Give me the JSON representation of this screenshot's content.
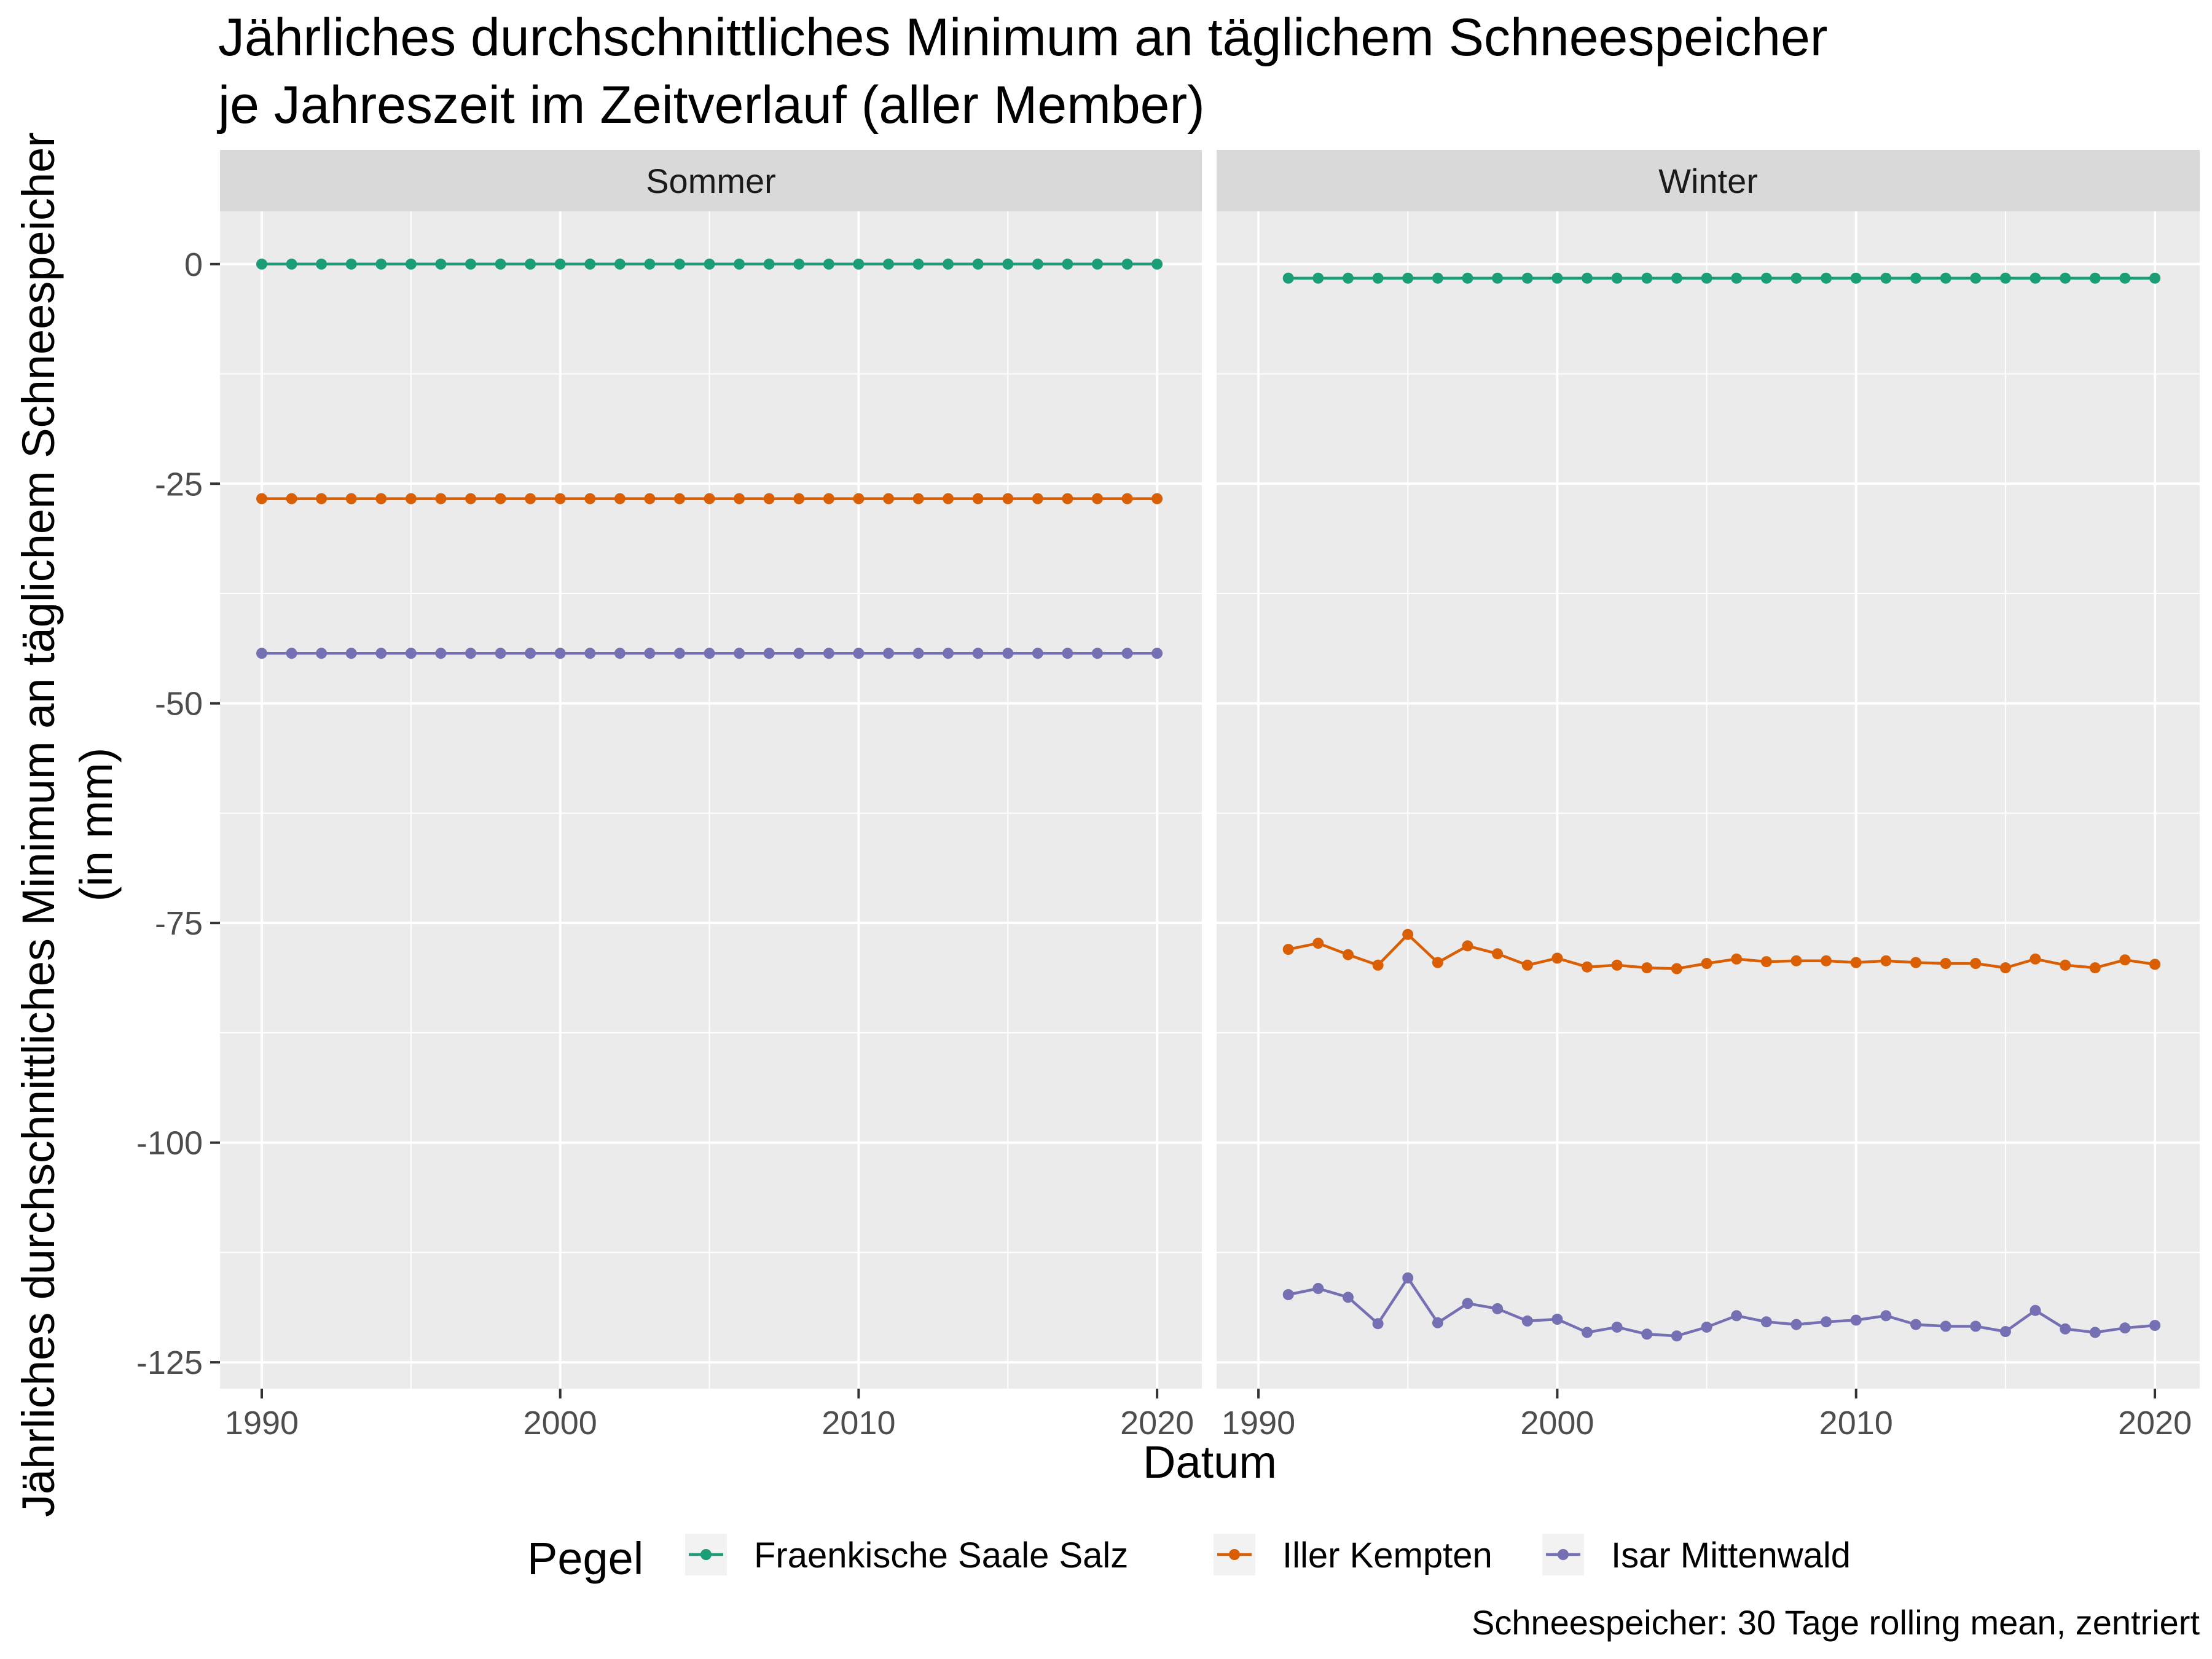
{
  "chart_data": {
    "type": "line",
    "title_lines": [
      "Jährliches durchschnittliches Minimum an täglichem Schneespeicher",
      "je Jahreszeit im Zeitverlauf (aller Member)"
    ],
    "xlabel": "Datum",
    "ylabel_lines": [
      "Jährliches durchschnittliches Minimum an täglichem Schneespeicher",
      "(in mm)"
    ],
    "caption": "Schneespeicher: 30 Tage rolling mean, zentriert",
    "legend": {
      "title": "Pegel",
      "position": "bottom"
    },
    "ylim": [
      -128,
      6
    ],
    "y_ticks": [
      0,
      -25,
      -50,
      -75,
      -100,
      -125
    ],
    "y_tick_labels": [
      "0",
      "-25",
      "-50",
      "-75",
      "-100",
      "-125"
    ],
    "x_ticks": [
      1990,
      2000,
      2010,
      2020
    ],
    "x_tick_labels": [
      "1990",
      "2000",
      "2010",
      "2020"
    ],
    "grid": true,
    "colors": {
      "Fraenkische Saale Salz": "#1b9e77",
      "Iller Kempten": "#d95f02",
      "Isar Mittenwald": "#7570b3"
    },
    "panels": [
      {
        "label": "Sommer",
        "xlim": [
          1988.6,
          2021.5
        ],
        "series": [
          {
            "name": "Fraenkische Saale Salz",
            "x": [
              1990,
              1991,
              1992,
              1993,
              1994,
              1995,
              1996,
              1997,
              1998,
              1999,
              2000,
              2001,
              2002,
              2003,
              2004,
              2005,
              2006,
              2007,
              2008,
              2009,
              2010,
              2011,
              2012,
              2013,
              2014,
              2015,
              2016,
              2017,
              2018,
              2019,
              2020
            ],
            "y": [
              0,
              0,
              0,
              0,
              0,
              0,
              0,
              0,
              0,
              0,
              0,
              0,
              0,
              0,
              0,
              0,
              0,
              0,
              0,
              0,
              0,
              0,
              0,
              0,
              0,
              0,
              0,
              0,
              0,
              0,
              0
            ]
          },
          {
            "name": "Iller Kempten",
            "x": [
              1990,
              1991,
              1992,
              1993,
              1994,
              1995,
              1996,
              1997,
              1998,
              1999,
              2000,
              2001,
              2002,
              2003,
              2004,
              2005,
              2006,
              2007,
              2008,
              2009,
              2010,
              2011,
              2012,
              2013,
              2014,
              2015,
              2016,
              2017,
              2018,
              2019,
              2020
            ],
            "y": [
              -26.7,
              -26.7,
              -26.7,
              -26.7,
              -26.7,
              -26.7,
              -26.7,
              -26.7,
              -26.7,
              -26.7,
              -26.7,
              -26.7,
              -26.7,
              -26.7,
              -26.7,
              -26.7,
              -26.7,
              -26.7,
              -26.7,
              -26.7,
              -26.7,
              -26.7,
              -26.7,
              -26.7,
              -26.7,
              -26.7,
              -26.7,
              -26.7,
              -26.7,
              -26.7,
              -26.7
            ]
          },
          {
            "name": "Isar Mittenwald",
            "x": [
              1990,
              1991,
              1992,
              1993,
              1994,
              1995,
              1996,
              1997,
              1998,
              1999,
              2000,
              2001,
              2002,
              2003,
              2004,
              2005,
              2006,
              2007,
              2008,
              2009,
              2010,
              2011,
              2012,
              2013,
              2014,
              2015,
              2016,
              2017,
              2018,
              2019,
              2020
            ],
            "y": [
              -44.3,
              -44.3,
              -44.3,
              -44.3,
              -44.3,
              -44.3,
              -44.3,
              -44.3,
              -44.3,
              -44.3,
              -44.3,
              -44.3,
              -44.3,
              -44.3,
              -44.3,
              -44.3,
              -44.3,
              -44.3,
              -44.3,
              -44.3,
              -44.3,
              -44.3,
              -44.3,
              -44.3,
              -44.3,
              -44.3,
              -44.3,
              -44.3,
              -44.3,
              -44.3,
              -44.3
            ]
          }
        ]
      },
      {
        "label": "Winter",
        "xlim": [
          1988.6,
          2021.5
        ],
        "series": [
          {
            "name": "Fraenkische Saale Salz",
            "x": [
              1991,
              1992,
              1993,
              1994,
              1995,
              1996,
              1997,
              1998,
              1999,
              2000,
              2001,
              2002,
              2003,
              2004,
              2005,
              2006,
              2007,
              2008,
              2009,
              2010,
              2011,
              2012,
              2013,
              2014,
              2015,
              2016,
              2017,
              2018,
              2019,
              2020
            ],
            "y": [
              -1.6,
              -1.6,
              -1.6,
              -1.6,
              -1.6,
              -1.6,
              -1.6,
              -1.6,
              -1.6,
              -1.6,
              -1.6,
              -1.6,
              -1.6,
              -1.6,
              -1.6,
              -1.6,
              -1.6,
              -1.6,
              -1.6,
              -1.6,
              -1.6,
              -1.6,
              -1.6,
              -1.6,
              -1.6,
              -1.6,
              -1.6,
              -1.6,
              -1.6,
              -1.6
            ]
          },
          {
            "name": "Iller Kempten",
            "x": [
              1991,
              1992,
              1993,
              1994,
              1995,
              1996,
              1997,
              1998,
              1999,
              2000,
              2001,
              2002,
              2003,
              2004,
              2005,
              2006,
              2007,
              2008,
              2009,
              2010,
              2011,
              2012,
              2013,
              2014,
              2015,
              2016,
              2017,
              2018,
              2019,
              2020
            ],
            "y": [
              -78.0,
              -77.3,
              -78.6,
              -79.8,
              -76.3,
              -79.5,
              -77.6,
              -78.5,
              -79.8,
              -79.0,
              -80.0,
              -79.8,
              -80.1,
              -80.2,
              -79.6,
              -79.1,
              -79.4,
              -79.3,
              -79.3,
              -79.5,
              -79.3,
              -79.5,
              -79.6,
              -79.6,
              -80.1,
              -79.1,
              -79.8,
              -80.1,
              -79.2,
              -79.7
            ]
          },
          {
            "name": "Isar Mittenwald",
            "x": [
              1991,
              1992,
              1993,
              1994,
              1995,
              1996,
              1997,
              1998,
              1999,
              2000,
              2001,
              2002,
              2003,
              2004,
              2005,
              2006,
              2007,
              2008,
              2009,
              2010,
              2011,
              2012,
              2013,
              2014,
              2015,
              2016,
              2017,
              2018,
              2019,
              2020
            ],
            "y": [
              -117.3,
              -116.6,
              -117.6,
              -120.6,
              -115.4,
              -120.5,
              -118.3,
              -118.9,
              -120.3,
              -120.1,
              -121.6,
              -121.0,
              -121.8,
              -122.0,
              -121.0,
              -119.7,
              -120.4,
              -120.7,
              -120.4,
              -120.2,
              -119.7,
              -120.7,
              -120.9,
              -120.9,
              -121.5,
              -119.1,
              -121.2,
              -121.6,
              -121.1,
              -120.8
            ]
          }
        ]
      }
    ]
  }
}
